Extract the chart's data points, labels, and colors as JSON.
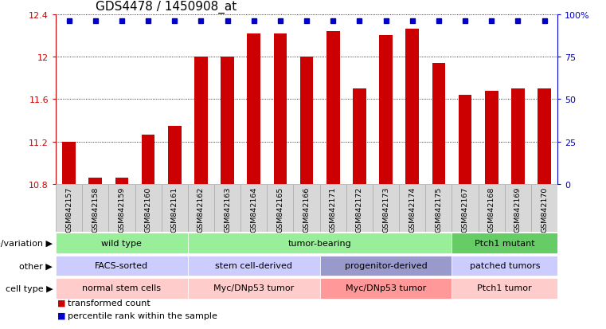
{
  "title": "GDS4478 / 1450908_at",
  "samples": [
    "GSM842157",
    "GSM842158",
    "GSM842159",
    "GSM842160",
    "GSM842161",
    "GSM842162",
    "GSM842163",
    "GSM842164",
    "GSM842165",
    "GSM842166",
    "GSM842171",
    "GSM842172",
    "GSM842173",
    "GSM842174",
    "GSM842175",
    "GSM842167",
    "GSM842168",
    "GSM842169",
    "GSM842170"
  ],
  "values": [
    11.2,
    10.86,
    10.86,
    11.27,
    11.35,
    12.0,
    12.0,
    12.22,
    12.22,
    12.0,
    12.24,
    11.7,
    12.2,
    12.26,
    11.94,
    11.64,
    11.68,
    11.7,
    11.7
  ],
  "ymin": 10.8,
  "ymax": 12.4,
  "yticks": [
    10.8,
    11.2,
    11.6,
    12.0,
    12.4
  ],
  "ytick_labels": [
    "10.8",
    "11.2",
    "11.6",
    "12",
    "12.4"
  ],
  "right_ytick_labels": [
    "0",
    "25",
    "50",
    "75",
    "100%"
  ],
  "bar_color": "#cc0000",
  "dot_color": "#0000cc",
  "bar_width": 0.5,
  "annotation_rows": [
    {
      "label": "genotype/variation",
      "segments": [
        {
          "text": "wild type",
          "start": 0,
          "end": 5,
          "color": "#99ee99"
        },
        {
          "text": "tumor-bearing",
          "start": 5,
          "end": 15,
          "color": "#99ee99"
        },
        {
          "text": "Ptch1 mutant",
          "start": 15,
          "end": 19,
          "color": "#66cc66"
        }
      ]
    },
    {
      "label": "other",
      "segments": [
        {
          "text": "FACS-sorted",
          "start": 0,
          "end": 5,
          "color": "#ccccff"
        },
        {
          "text": "stem cell-derived",
          "start": 5,
          "end": 10,
          "color": "#ccccff"
        },
        {
          "text": "progenitor-derived",
          "start": 10,
          "end": 15,
          "color": "#9999cc"
        },
        {
          "text": "patched tumors",
          "start": 15,
          "end": 19,
          "color": "#ccccff"
        }
      ]
    },
    {
      "label": "cell type",
      "segments": [
        {
          "text": "normal stem cells",
          "start": 0,
          "end": 5,
          "color": "#ffcccc"
        },
        {
          "text": "Myc/DNp53 tumor",
          "start": 5,
          "end": 10,
          "color": "#ffcccc"
        },
        {
          "text": "Myc/DNp53 tumor",
          "start": 10,
          "end": 15,
          "color": "#ff9999"
        },
        {
          "text": "Ptch1 tumor",
          "start": 15,
          "end": 19,
          "color": "#ffcccc"
        }
      ]
    }
  ],
  "legend_red": "transformed count",
  "legend_blue": "percentile rank within the sample",
  "left_tick_color": "#cc0000",
  "right_tick_color": "#0000cc",
  "title_fontsize": 11,
  "tick_fontsize": 8,
  "ann_fontsize": 8,
  "label_fontsize": 8
}
